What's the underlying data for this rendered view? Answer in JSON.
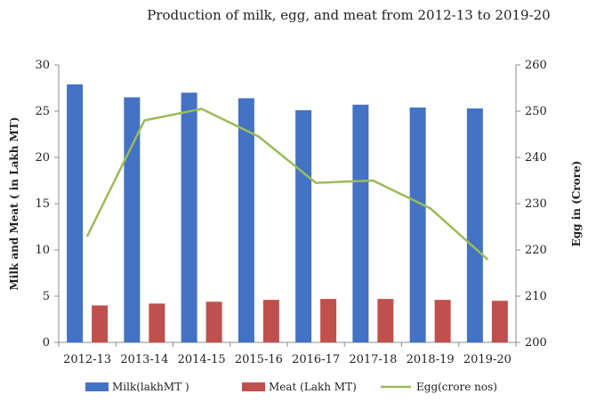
{
  "chart_data": {
    "type": "bar",
    "title": "Production of milk, egg, and meat from 2012-13 to 2019-20",
    "categories": [
      "2012-13",
      "2013-14",
      "2014-15",
      "2015-16",
      "2016-17",
      "2017-18",
      "2018-19",
      "2019-20"
    ],
    "series": [
      {
        "name": "Milk(lakhMT )",
        "type": "bar",
        "axis": "left",
        "color": "#4472C4",
        "values": [
          27.9,
          26.5,
          27.0,
          26.4,
          25.1,
          25.7,
          25.4,
          25.3
        ]
      },
      {
        "name": "Meat (Lakh MT)",
        "type": "bar",
        "axis": "left",
        "color": "#C0504D",
        "values": [
          4.0,
          4.2,
          4.4,
          4.6,
          4.7,
          4.7,
          4.6,
          4.5
        ]
      },
      {
        "name": "Egg(crore nos)",
        "type": "line",
        "axis": "right",
        "color": "#9BBB59",
        "values": [
          223,
          248,
          250.5,
          244.5,
          234.5,
          235,
          229,
          218
        ]
      }
    ],
    "ylabel": "Milk and Meat ( in Lakh MT)",
    "ylabel_right": "Egg in (Crore)",
    "ylim": [
      0,
      30
    ],
    "ylim_right": [
      200,
      260
    ],
    "yticks": [
      "0",
      "5",
      "10",
      "15",
      "20",
      "25",
      "30"
    ],
    "yticks_right": [
      "200",
      "210",
      "220",
      "230",
      "240",
      "250",
      "260"
    ],
    "grid": false,
    "legend_position": "bottom"
  }
}
